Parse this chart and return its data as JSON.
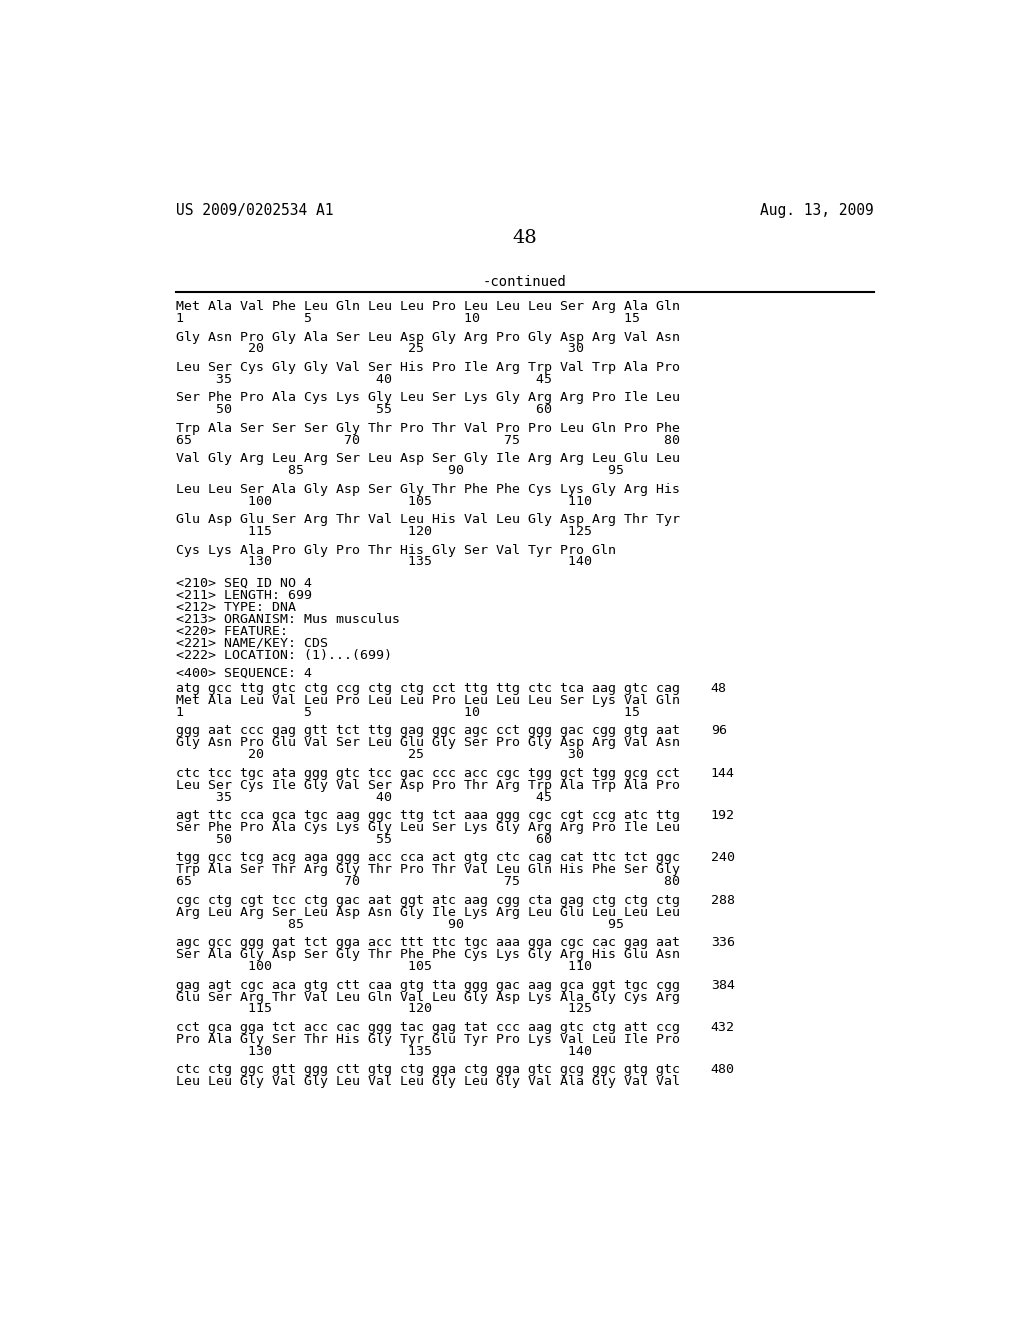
{
  "header_left": "US 2009/0202534 A1",
  "header_right": "Aug. 13, 2009",
  "page_number": "48",
  "continued_label": "-continued",
  "background_color": "#ffffff",
  "text_color": "#000000",
  "content_lines": [
    "Met Ala Val Phe Leu Gln Leu Leu Pro Leu Leu Leu Ser Arg Ala Gln",
    "1               5                   10                  15",
    "",
    "Gly Asn Pro Gly Ala Ser Leu Asp Gly Arg Pro Gly Asp Arg Val Asn",
    "         20                  25                  30",
    "",
    "Leu Ser Cys Gly Gly Val Ser His Pro Ile Arg Trp Val Trp Ala Pro",
    "     35                  40                  45",
    "",
    "Ser Phe Pro Ala Cys Lys Gly Leu Ser Lys Gly Arg Arg Pro Ile Leu",
    "     50                  55                  60",
    "",
    "Trp Ala Ser Ser Ser Gly Thr Pro Thr Val Pro Pro Leu Gln Pro Phe",
    "65                   70                  75                  80",
    "",
    "Val Gly Arg Leu Arg Ser Leu Asp Ser Gly Ile Arg Arg Leu Glu Leu",
    "              85                  90                  95",
    "",
    "Leu Leu Ser Ala Gly Asp Ser Gly Thr Phe Phe Cys Lys Gly Arg His",
    "         100                 105                 110",
    "",
    "Glu Asp Glu Ser Arg Thr Val Leu His Val Leu Gly Asp Arg Thr Tyr",
    "         115                 120                 125",
    "",
    "Cys Lys Ala Pro Gly Pro Thr His Gly Ser Val Tyr Pro Gln",
    "         130                 135                 140"
  ],
  "meta_lines": [
    "<210> SEQ ID NO 4",
    "<211> LENGTH: 699",
    "<212> TYPE: DNA",
    "<213> ORGANISM: Mus musculus",
    "<220> FEATURE:",
    "<221> NAME/KEY: CDS",
    "<222> LOCATION: (1)...(699)"
  ],
  "seq_label": "<400> SEQUENCE: 4",
  "sequence_blocks": [
    {
      "dna": "atg gcc ttg gtc ctg ccg ctg ctg cct ttg ttg ctc tca aag gtc cag",
      "num_right": "48",
      "aa": "Met Ala Leu Val Leu Pro Leu Leu Pro Leu Leu Leu Ser Lys Val Gln",
      "pos": "1               5                   10                  15"
    },
    {
      "dna": "ggg aat ccc gag gtt tct ttg gag ggc agc cct ggg gac cgg gtg aat",
      "num_right": "96",
      "aa": "Gly Asn Pro Glu Val Ser Leu Glu Gly Ser Pro Gly Asp Arg Val Asn",
      "pos": "         20                  25                  30"
    },
    {
      "dna": "ctc tcc tgc ata ggg gtc tcc gac ccc acc cgc tgg gct tgg gcg cct",
      "num_right": "144",
      "aa": "Leu Ser Cys Ile Gly Val Ser Asp Pro Thr Arg Trp Ala Trp Ala Pro",
      "pos": "     35                  40                  45"
    },
    {
      "dna": "agt ttc cca gca tgc aag ggc ttg tct aaa ggg cgc cgt ccg atc ttg",
      "num_right": "192",
      "aa": "Ser Phe Pro Ala Cys Lys Gly Leu Ser Lys Gly Arg Arg Pro Ile Leu",
      "pos": "     50                  55                  60"
    },
    {
      "dna": "tgg gcc tcg acg aga ggg acc cca act gtg ctc cag cat ttc tct ggc",
      "num_right": "240",
      "aa": "Trp Ala Ser Thr Arg Gly Thr Pro Thr Val Leu Gln His Phe Ser Gly",
      "pos": "65                   70                  75                  80"
    },
    {
      "dna": "cgc ctg cgt tcc ctg gac aat ggt atc aag cgg cta gag ctg ctg ctg",
      "num_right": "288",
      "aa": "Arg Leu Arg Ser Leu Asp Asn Gly Ile Lys Arg Leu Glu Leu Leu Leu",
      "pos": "              85                  90                  95"
    },
    {
      "dna": "agc gcc ggg gat tct gga acc ttt ttc tgc aaa gga cgc cac gag aat",
      "num_right": "336",
      "aa": "Ser Ala Gly Asp Ser Gly Thr Phe Phe Cys Lys Gly Arg His Glu Asn",
      "pos": "         100                 105                 110"
    },
    {
      "dna": "gag agt cgc aca gtg ctt caa gtg tta ggg gac aag gca ggt tgc cgg",
      "num_right": "384",
      "aa": "Glu Ser Arg Thr Val Leu Gln Val Leu Gly Asp Lys Ala Gly Cys Arg",
      "pos": "         115                 120                 125"
    },
    {
      "dna": "cct gca gga tct acc cac ggg tac gag tat ccc aag gtc ctg att ccg",
      "num_right": "432",
      "aa": "Pro Ala Gly Ser Thr His Gly Tyr Glu Tyr Pro Lys Val Leu Ile Pro",
      "pos": "         130                 135                 140"
    },
    {
      "dna": "ctc ctg ggc gtt ggg ctt gtg ctg gga ctg gga gtc gcg ggc gtg gtc",
      "num_right": "480",
      "aa": "Leu Leu Gly Val Gly Leu Val Leu Gly Leu Gly Val Ala Gly Val Val",
      "pos": ""
    }
  ]
}
